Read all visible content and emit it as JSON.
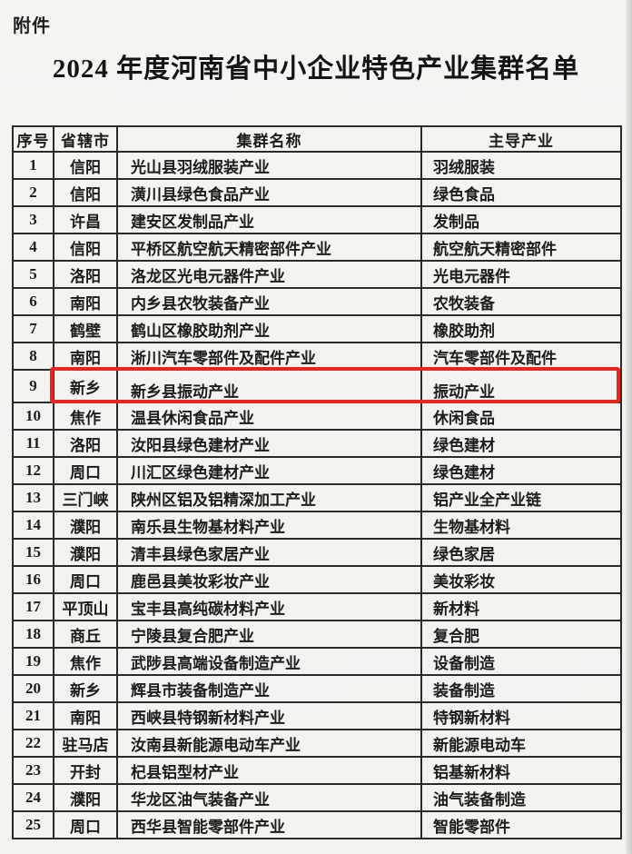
{
  "page": {
    "attachment_label": "附件",
    "title": "2024 年度河南省中小企业特色产业集群名单"
  },
  "table": {
    "headers": [
      "序号",
      "省辖市",
      "集群名称",
      "主导产业"
    ],
    "rows": [
      [
        "1",
        "信阳",
        "光山县羽绒服装产业",
        "羽绒服装"
      ],
      [
        "2",
        "信阳",
        "潢川县绿色食品产业",
        "绿色食品"
      ],
      [
        "3",
        "许昌",
        "建安区发制品产业",
        "发制品"
      ],
      [
        "4",
        "信阳",
        "平桥区航空航天精密部件产业",
        "航空航天精密部件"
      ],
      [
        "5",
        "洛阳",
        "洛龙区光电元器件产业",
        "光电元器件"
      ],
      [
        "6",
        "南阳",
        "内乡县农牧装备产业",
        "农牧装备"
      ],
      [
        "7",
        "鹤壁",
        "鹤山区橡胶助剂产业",
        "橡胶助剂"
      ],
      [
        "8",
        "南阳",
        "淅川汽车零部件及配件产业",
        "汽车零部件及配件"
      ],
      [
        "9",
        "新乡",
        "新乡县振动产业",
        "振动产业"
      ],
      [
        "10",
        "焦作",
        "温县休闲食品产业",
        "休闲食品"
      ],
      [
        "11",
        "洛阳",
        "汝阳县绿色建材产业",
        "绿色建材"
      ],
      [
        "12",
        "周口",
        "川汇区绿色建材产业",
        "绿色建材"
      ],
      [
        "13",
        "三门峡",
        "陕州区铝及铝精深加工产业",
        "铝产业全产业链"
      ],
      [
        "14",
        "濮阳",
        "南乐县生物基材料产业",
        "生物基材料"
      ],
      [
        "15",
        "濮阳",
        "清丰县绿色家居产业",
        "绿色家居"
      ],
      [
        "16",
        "周口",
        "鹿邑县美妆彩妆产业",
        "美妆彩妆"
      ],
      [
        "17",
        "平顶山",
        "宝丰县高纯碳材料产业",
        "新材料"
      ],
      [
        "18",
        "商丘",
        "宁陵县复合肥产业",
        "复合肥"
      ],
      [
        "19",
        "焦作",
        "武陟县高端设备制造产业",
        "设备制造"
      ],
      [
        "20",
        "新乡",
        "辉县市装备制造产业",
        "装备制造"
      ],
      [
        "21",
        "南阳",
        "西峡县特钢新材料产业",
        "特钢新材料"
      ],
      [
        "22",
        "驻马店",
        "汝南县新能源电动车产业",
        "新能源电动车"
      ],
      [
        "23",
        "开封",
        "杞县铝型材产业",
        "铝基新材料"
      ],
      [
        "24",
        "濮阳",
        "华龙区油气装备产业",
        "油气装备制造"
      ],
      [
        "25",
        "周口",
        "西华县智能零部件产业",
        "智能零部件"
      ]
    ],
    "highlight": {
      "row_number": "9",
      "row_index": 8,
      "color": "#e7271d"
    }
  }
}
